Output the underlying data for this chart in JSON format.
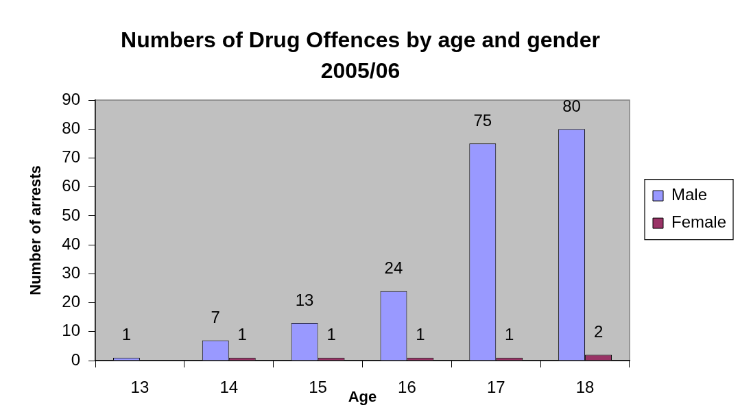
{
  "chart_data": {
    "type": "bar",
    "title": "Numbers of Drug Offences by age and gender 2005/06",
    "xlabel": "Age",
    "ylabel": "Number of arrests",
    "categories": [
      "13",
      "14",
      "15",
      "16",
      "17",
      "18"
    ],
    "series": [
      {
        "name": "Male",
        "color": "#9999ff",
        "values": [
          1,
          7,
          13,
          24,
          75,
          80
        ]
      },
      {
        "name": "Female",
        "color": "#993366",
        "values": [
          null,
          1,
          1,
          1,
          1,
          2
        ]
      }
    ],
    "ylim": [
      0,
      90
    ],
    "yticks": [
      0,
      10,
      20,
      30,
      40,
      50,
      60,
      70,
      80,
      90
    ],
    "grid": false,
    "legend": "right",
    "data_labels": true
  }
}
